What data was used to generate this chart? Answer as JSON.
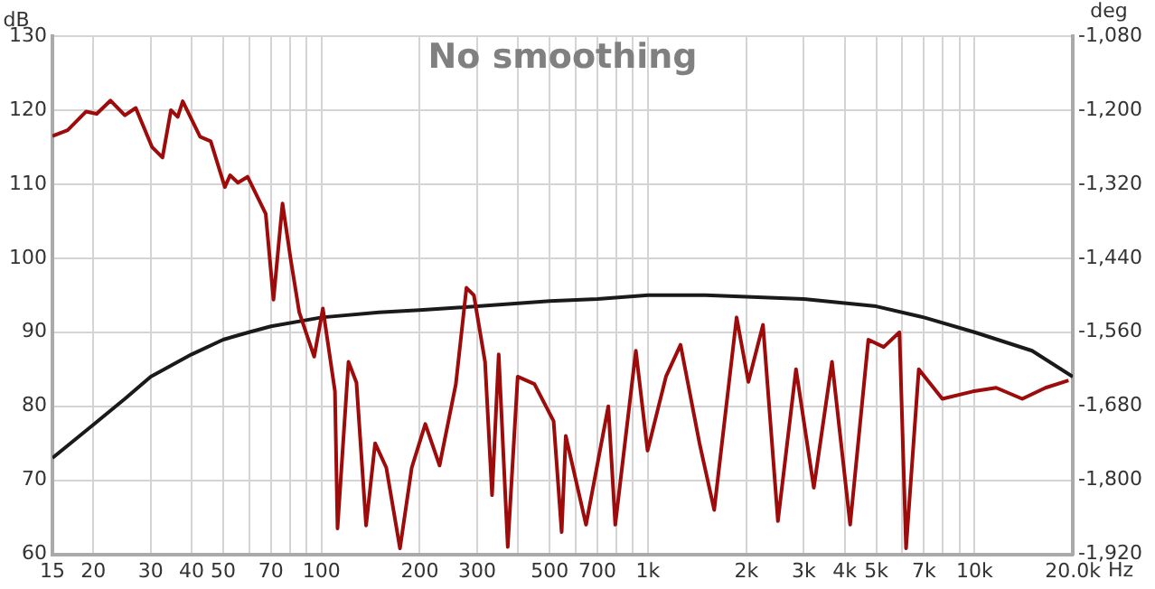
{
  "chart_data": {
    "type": "line",
    "title": "No smoothing",
    "xlabel": "Hz",
    "ylabel": "dB",
    "y2label": "deg",
    "log": "x",
    "grid": true,
    "legend": false,
    "marker": "none",
    "line_style": "solid",
    "xlim": [
      15,
      20000
    ],
    "xticks": [
      15,
      20,
      30,
      40,
      50,
      {
        "value": 60,
        "label": null
      },
      70,
      {
        "value": 80,
        "label": null
      },
      {
        "value": 90,
        "label": null
      },
      100,
      200,
      300,
      {
        "value": 400,
        "label": null
      },
      500,
      {
        "value": 600,
        "label": null
      },
      700,
      {
        "value": 800,
        "label": null
      },
      {
        "value": 900,
        "label": null
      },
      {
        "value": 1000,
        "label": "1k"
      },
      {
        "value": 2000,
        "label": "2k"
      },
      {
        "value": 3000,
        "label": "3k"
      },
      {
        "value": 4000,
        "label": "4k"
      },
      {
        "value": 5000,
        "label": "5k"
      },
      {
        "value": 6000,
        "label": null
      },
      {
        "value": 7000,
        "label": "7k"
      },
      {
        "value": 8000,
        "label": null
      },
      {
        "value": 9000,
        "label": null
      },
      {
        "value": 10000,
        "label": "10k"
      },
      {
        "value": 20000,
        "label": "20.0k"
      }
    ],
    "ylim": [
      60,
      130
    ],
    "yticks": [
      60,
      70,
      80,
      90,
      100,
      110,
      120,
      130
    ],
    "y2lim": [
      -1920,
      -1080
    ],
    "y2ticks": [
      {
        "value": -1920,
        "label": "-1,920"
      },
      {
        "value": -1800,
        "label": "-1,800"
      },
      {
        "value": -1680,
        "label": "-1,680"
      },
      {
        "value": -1560,
        "label": "-1,560"
      },
      {
        "value": -1440,
        "label": "-1,440"
      },
      {
        "value": -1320,
        "label": "-1,320"
      },
      {
        "value": -1200,
        "label": "-1,200"
      },
      {
        "value": -1080,
        "label": "-1,080"
      }
    ],
    "series": [
      {
        "color": "#9e0b0b",
        "x": [
          15,
          16.7,
          19,
          20.5,
          22.6,
          25,
          27,
          30.3,
          32.6,
          34.6,
          36.3,
          37.6,
          42.5,
          45.8,
          50.6,
          52.5,
          55.5,
          59.4,
          67.5,
          71.3,
          76,
          80.4,
          85.5,
          95,
          101,
          110,
          112,
          121,
          128,
          137,
          146,
          158,
          174,
          189,
          208,
          230,
          258,
          278,
          293,
          317,
          333,
          349,
          372,
          399,
          449,
          514,
          544,
          560,
          646,
          756,
          794,
          918,
          997,
          1135,
          1258,
          1438,
          1595,
          1868,
          2030,
          2250,
          2500,
          2840,
          3220,
          3660,
          4160,
          4730,
          5270,
          5890,
          6170,
          6750,
          7970,
          9870,
          11650,
          14000,
          16500,
          19400
        ],
        "values": [
          116.5,
          117.3,
          119.8,
          119.5,
          121.3,
          119.3,
          120.3,
          115,
          113.6,
          120,
          119.1,
          121.2,
          116.4,
          115.8,
          109.6,
          111.2,
          110.2,
          111,
          106,
          94.4,
          107.4,
          100,
          92.7,
          86.7,
          93.2,
          82,
          63.5,
          86,
          83.2,
          63.9,
          75,
          71.7,
          60.8,
          71.7,
          77.6,
          72,
          83,
          96,
          95,
          86,
          68,
          87,
          61,
          84,
          83,
          78,
          63,
          76,
          64,
          80,
          64,
          87.5,
          74,
          84,
          88.3,
          75,
          66,
          92,
          83.3,
          91,
          64.5,
          85,
          69,
          86,
          64,
          89,
          88,
          90,
          60.8,
          85,
          81,
          82,
          82.5,
          81,
          82.5,
          83.5
        ]
      },
      {
        "color": "#1a1a1a",
        "x": [
          15,
          20,
          25,
          30,
          40,
          50,
          60,
          70,
          100,
          150,
          200,
          300,
          500,
          700,
          1000,
          1500,
          2000,
          3000,
          5000,
          7000,
          10000,
          15000,
          20000
        ],
        "values": [
          73,
          77.5,
          81,
          84,
          87,
          89,
          90,
          90.8,
          92,
          92.7,
          93,
          93.5,
          94.2,
          94.5,
          95,
          95,
          94.8,
          94.5,
          93.5,
          92,
          90,
          87.5,
          84
        ]
      }
    ]
  }
}
